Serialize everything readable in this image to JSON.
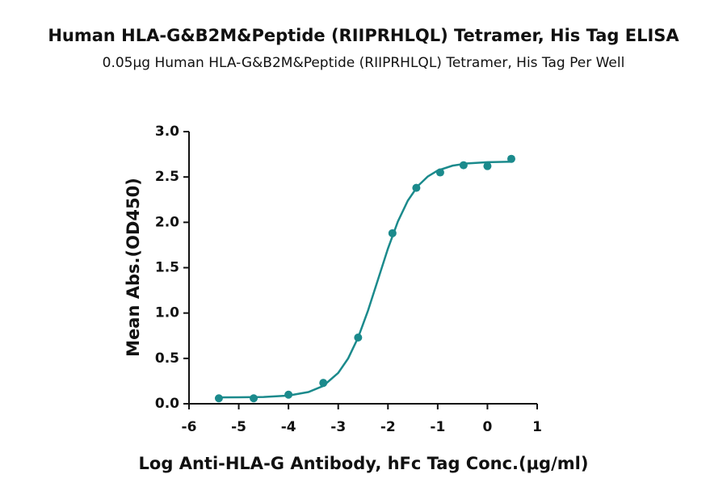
{
  "chart_data": {
    "type": "scatter",
    "title": "Human HLA-G&B2M&Peptide (RIIPRHLQL) Tetramer, His Tag ELISA",
    "subtitle": "0.05μg Human HLA-G&B2M&Peptide (RIIPRHLQL) Tetramer, His Tag Per Well",
    "x_label": "Log Anti-HLA-G Antibody, hFc Tag Conc.(μg/ml)",
    "y_label": "Mean Abs.(OD450)",
    "xlim": [
      -6,
      1
    ],
    "ylim": [
      0,
      3
    ],
    "xticks": [
      -6,
      -5,
      -4,
      -3,
      -2,
      -1,
      0,
      1
    ],
    "yticks": [
      {
        "value": 0,
        "label": "0.0"
      },
      0.5,
      {
        "value": 1,
        "label": "1.0"
      },
      1.5,
      {
        "value": 2,
        "label": "2.0"
      },
      2.5,
      {
        "value": 3,
        "label": "3.0"
      }
    ],
    "series": [
      {
        "color": "#1b8a8c",
        "x": [
          -5.4,
          -4.7,
          -4.0,
          -3.3,
          -2.6,
          -1.91,
          -1.43,
          -0.95,
          -0.48,
          0.0,
          0.48
        ],
        "values": [
          0.06,
          0.06,
          0.1,
          0.23,
          0.73,
          1.88,
          2.38,
          2.55,
          2.63,
          2.62,
          2.7
        ]
      }
    ],
    "fit": {
      "color": "#1b8a8c",
      "x": [
        -5.4,
        -5,
        -4.5,
        -4,
        -3.6,
        -3.3,
        -3,
        -2.8,
        -2.6,
        -2.4,
        -2.2,
        -2,
        -1.8,
        -1.6,
        -1.4,
        -1.2,
        -1,
        -0.7,
        -0.4,
        0,
        0.48
      ],
      "values": [
        0.07,
        0.071,
        0.075,
        0.09,
        0.129,
        0.197,
        0.34,
        0.5,
        0.73,
        1.029,
        1.37,
        1.711,
        2.01,
        2.24,
        2.4,
        2.505,
        2.571,
        2.625,
        2.65,
        2.663,
        2.668
      ]
    }
  }
}
